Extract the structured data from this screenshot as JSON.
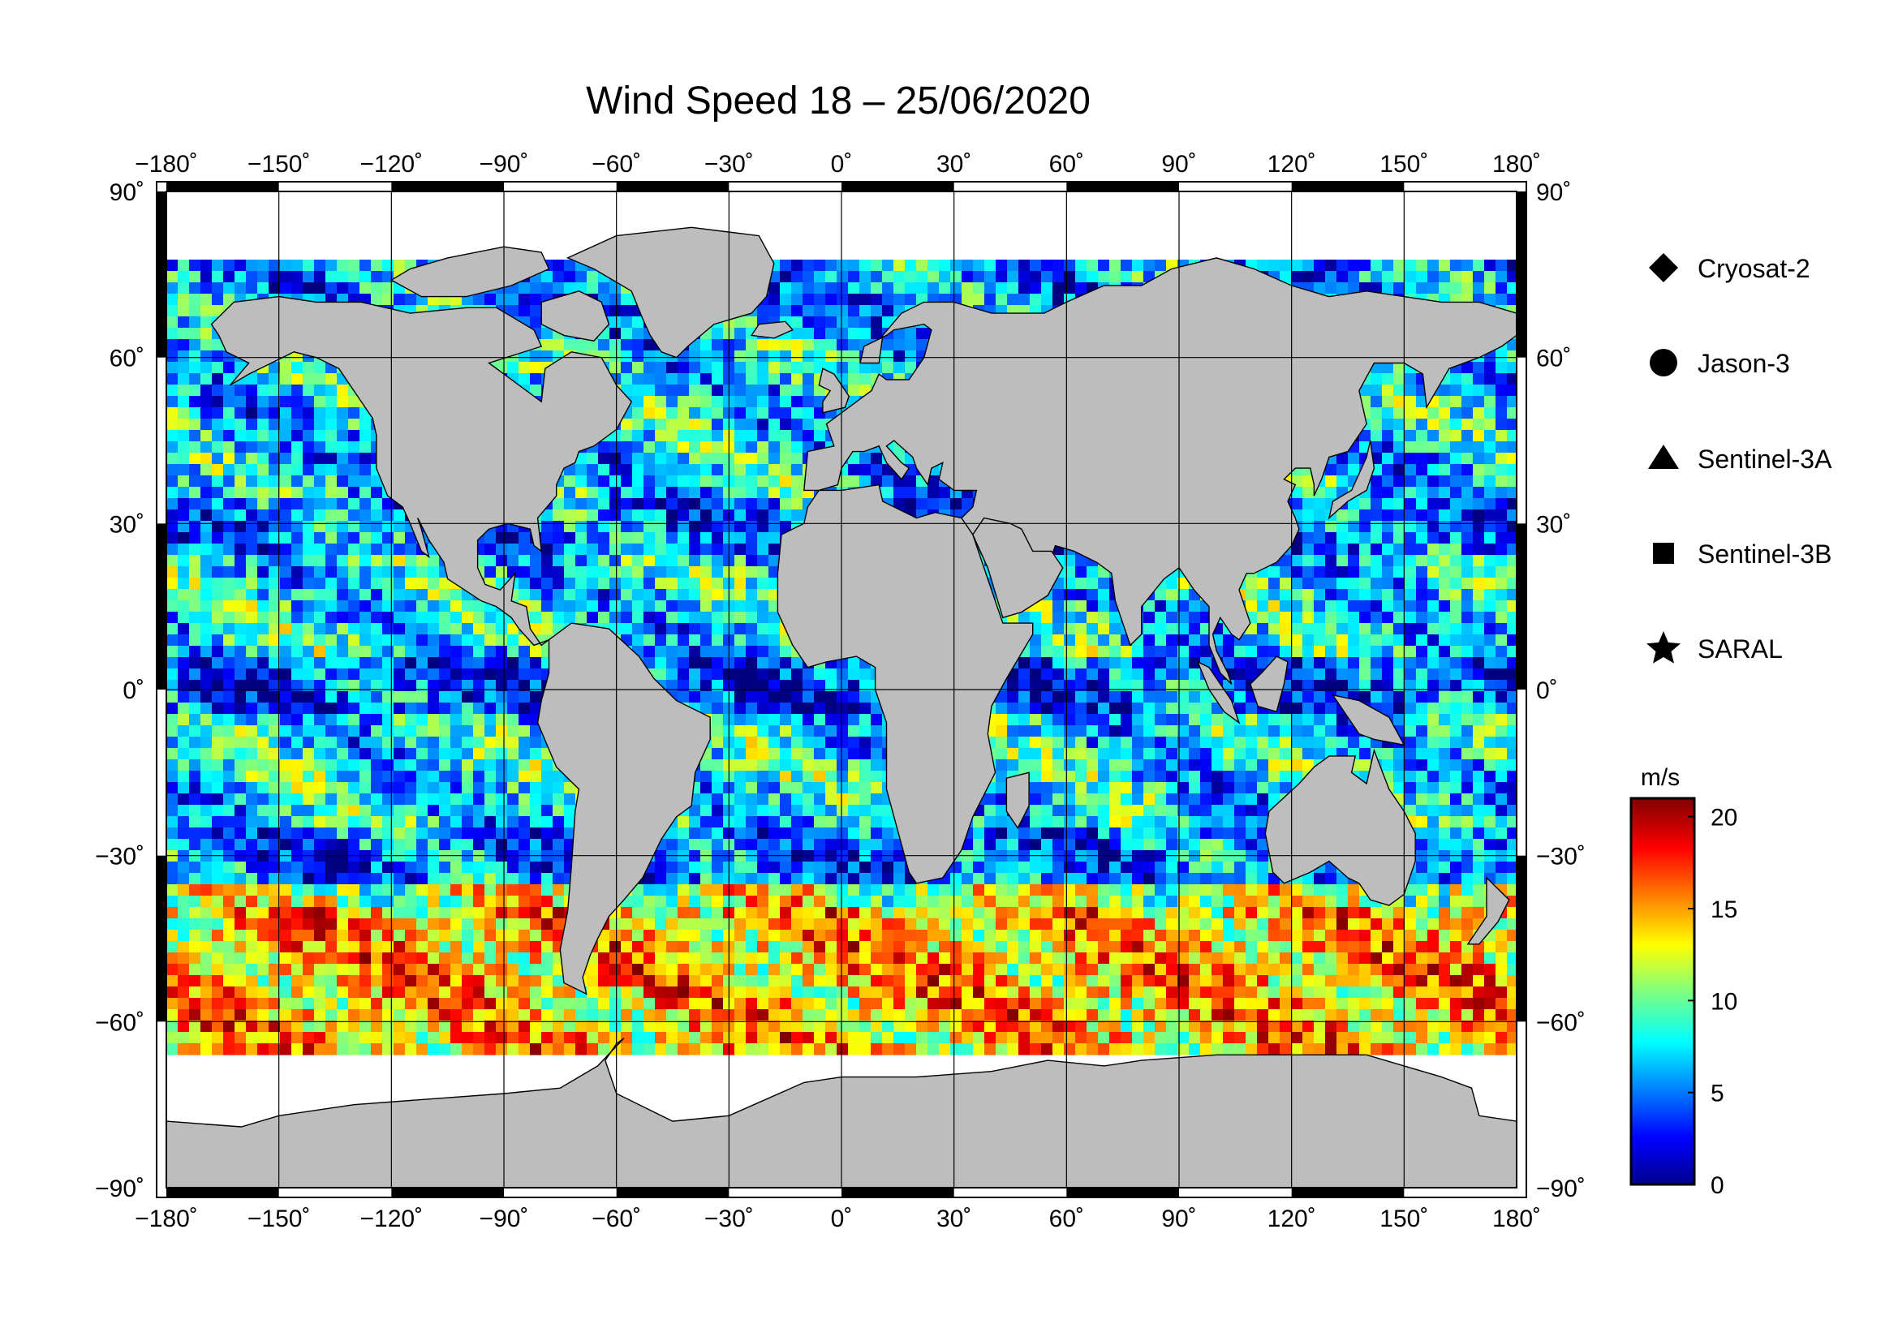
{
  "title": "Wind Speed 18 – 25/06/2020",
  "colors": {
    "land": "#bdbdbd",
    "ice": "#ffffff",
    "frame": "#000000",
    "ocean_low": "#0a12b4",
    "ocean_high": "#d81a10"
  },
  "axes": {
    "lon_ticks": [
      "−180˚",
      "−150˚",
      "−120˚",
      "−90˚",
      "−60˚",
      "−30˚",
      "0˚",
      "30˚",
      "60˚",
      "90˚",
      "120˚",
      "150˚",
      "180˚"
    ],
    "lat_ticks_left": [
      "90˚",
      "60˚",
      "30˚",
      "0˚",
      "−30˚",
      "−60˚",
      "−90˚"
    ],
    "lat_ticks_right": [
      "90˚",
      "60˚",
      "30˚",
      "0˚",
      "−30˚",
      "−60˚",
      "−90˚"
    ],
    "lon_range": [
      -180,
      180
    ],
    "lat_range": [
      -90,
      90
    ],
    "grid": true
  },
  "legend": {
    "items": [
      {
        "label": "Cryosat-2",
        "symbol": "diamond-icon"
      },
      {
        "label": "Jason-3",
        "symbol": "circle-icon"
      },
      {
        "label": "Sentinel-3A",
        "symbol": "triangle-icon"
      },
      {
        "label": "Sentinel-3B",
        "symbol": "square-icon"
      },
      {
        "label": "SARAL",
        "symbol": "star-icon"
      }
    ]
  },
  "colorbar": {
    "unit": "m/s",
    "ticks": [
      "20",
      "15",
      "10",
      "5",
      "0"
    ],
    "range": [
      0,
      21
    ],
    "colormap": "jet"
  },
  "chart_data": {
    "type": "heatmap",
    "title": "Wind Speed 18 – 25/06/2020",
    "x_range": [
      -180,
      180
    ],
    "y_range": [
      -90,
      90
    ],
    "value_range": [
      0,
      21
    ],
    "unit": "m/s",
    "series": [
      {
        "name": "Cryosat-2"
      },
      {
        "name": "Jason-3"
      },
      {
        "name": "Sentinel-3A"
      },
      {
        "name": "Sentinel-3B"
      },
      {
        "name": "SARAL"
      }
    ]
  }
}
